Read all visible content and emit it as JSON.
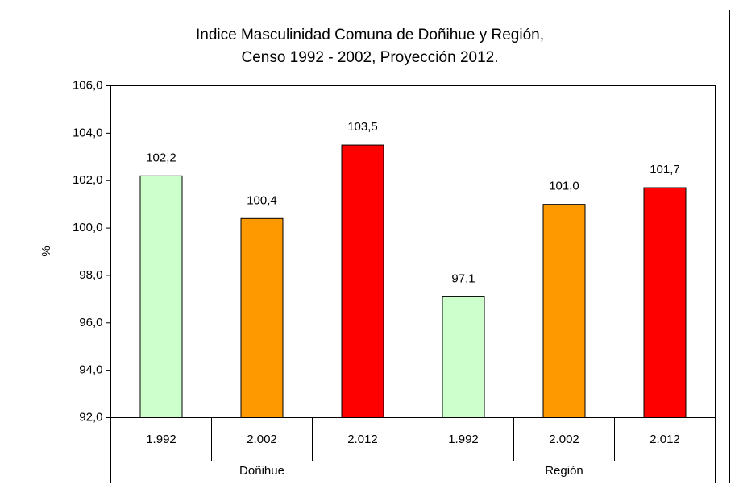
{
  "chart_data": {
    "type": "bar",
    "title": [
      "Indice Masculinidad Comuna de Doñihue y Región,",
      "Censo 1992 - 2002, Proyección 2012."
    ],
    "y_label": "%",
    "groups": [
      "Doñihue",
      "Región"
    ],
    "categories": [
      "1.992",
      "2.002",
      "2.012",
      "1.992",
      "2.002",
      "2.012"
    ],
    "values": [
      102.2,
      100.4,
      103.5,
      97.1,
      101.0,
      101.7
    ],
    "value_labels": [
      "102,2",
      "100,4",
      "103,5",
      "97,1",
      "101,0",
      "101,7"
    ],
    "colors": [
      "#ccffcc",
      "#ff9900",
      "#ff0000",
      "#ccffcc",
      "#ff9900",
      "#ff0000"
    ],
    "ylim": [
      92,
      106
    ],
    "yticks": [
      {
        "value": 92,
        "label": "92,0"
      },
      {
        "value": 94,
        "label": "94,0"
      },
      {
        "value": 96,
        "label": "96,0"
      },
      {
        "value": 98,
        "label": "98,0"
      },
      {
        "value": 100,
        "label": "100,0"
      },
      {
        "value": 102,
        "label": "102,0"
      },
      {
        "value": 104,
        "label": "104,0"
      },
      {
        "value": 106,
        "label": "106,0"
      }
    ],
    "grid": false
  }
}
